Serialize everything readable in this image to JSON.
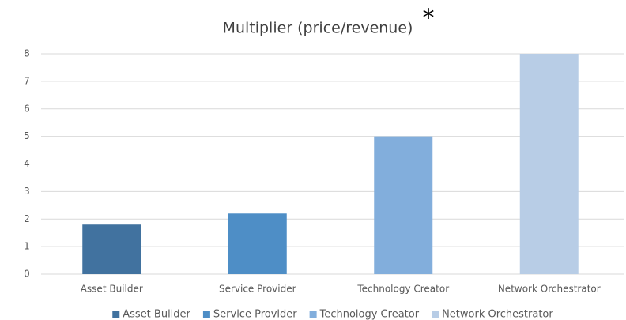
{
  "chart_data": {
    "type": "bar",
    "title": "Multiplier (price/revenue)",
    "annotation": "*",
    "categories": [
      "Asset Builder",
      "Service Provider",
      "Technology Creator",
      "Network Orchestrator"
    ],
    "values": [
      1.8,
      2.2,
      5,
      8
    ],
    "colors": [
      "#41729f",
      "#4e8ec6",
      "#82aedc",
      "#b8cde6"
    ],
    "ylim": [
      0,
      8
    ],
    "yticks": [
      0,
      1,
      2,
      3,
      4,
      5,
      6,
      7,
      8
    ],
    "grid": true,
    "legend": "bottom"
  }
}
